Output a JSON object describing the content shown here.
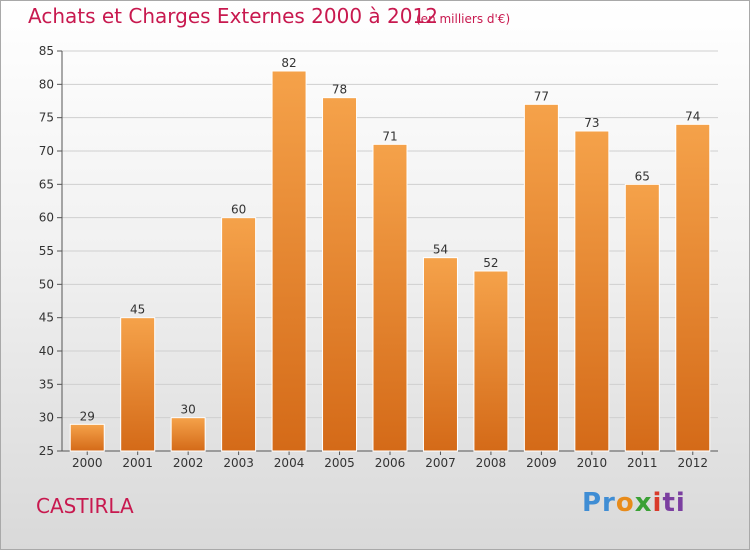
{
  "chart_data": {
    "type": "bar",
    "title": "Achats et Charges Externes 2000 à 2012",
    "subtitle": "(en milliers d'€)",
    "categories": [
      "2000",
      "2001",
      "2002",
      "2003",
      "2004",
      "2005",
      "2006",
      "2007",
      "2008",
      "2009",
      "2010",
      "2011",
      "2012"
    ],
    "values": [
      29,
      45,
      30,
      60,
      82,
      78,
      71,
      54,
      52,
      77,
      73,
      65,
      74
    ],
    "xlabel": "",
    "ylabel": "",
    "ylim": [
      25,
      85
    ],
    "yticks": [
      25,
      30,
      35,
      40,
      45,
      50,
      55,
      60,
      65,
      70,
      75,
      80,
      85
    ],
    "grid": true,
    "bar_color_top": "#f5a24a",
    "bar_color_bottom": "#d46a18"
  },
  "footer": {
    "place": "CASTIRLA",
    "logo": [
      "Pr",
      "o",
      "x",
      "i",
      "ti"
    ]
  }
}
